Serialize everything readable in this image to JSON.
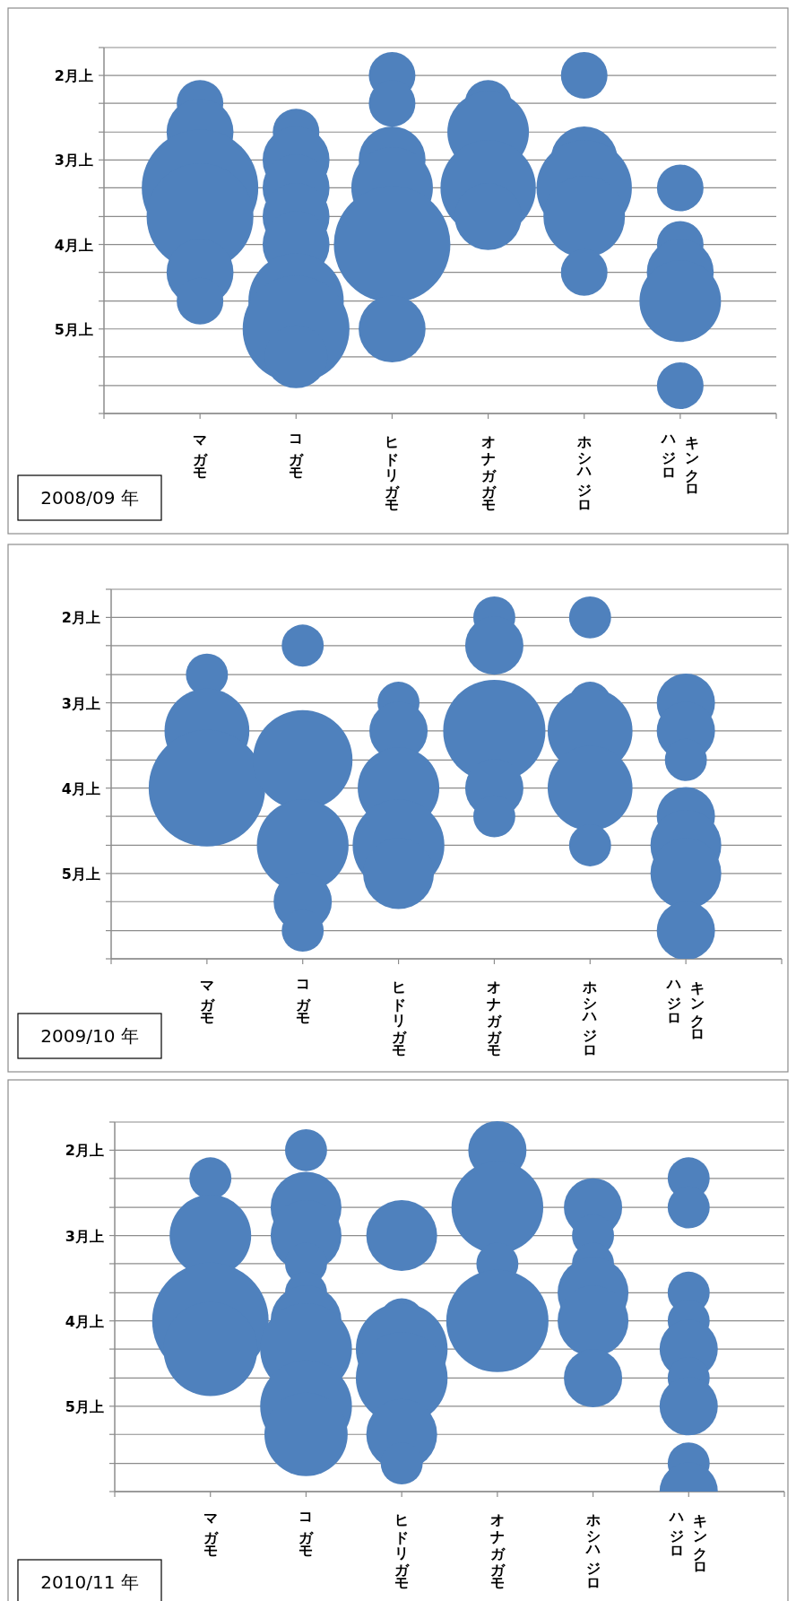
{
  "chart_data": [
    {
      "type": "bubble",
      "categories": [
        "マガモ",
        "コガモ",
        "ヒドリガモ",
        "オナガガモ",
        "ホシハジロ",
        "キンクロハジロ"
      ],
      "series": [
        {
          "color": "#4f81bd",
          "x": [
            "マガモ",
            "マガモ",
            "マガモ",
            "マガモ",
            "マガモ",
            "マガモ"
          ],
          "values": [
            2.33,
            2.67,
            3.33,
            3.67,
            4.33,
            4.67
          ],
          "sizes": [
            0.16,
            0.33,
            1,
            0.84,
            0.33,
            0.16
          ]
        },
        {
          "color": "#4f81bd",
          "x": [
            "コガモ",
            "コガモ",
            "コガモ",
            "コガモ",
            "コガモ",
            "コガモ",
            "コガモ",
            "コガモ"
          ],
          "values": [
            2.67,
            3,
            3.33,
            3.67,
            4,
            4.67,
            5,
            5.33
          ],
          "sizes": [
            0.16,
            0.33,
            0.33,
            0.33,
            0.33,
            0.67,
            0.84,
            0.29
          ]
        },
        {
          "color": "#4f81bd",
          "x": [
            "ヒドリガモ",
            "ヒドリガモ",
            "ヒドリガモ",
            "ヒドリガモ",
            "ヒドリガモ",
            "ヒドリガモ"
          ],
          "values": [
            2,
            2.33,
            3,
            3.33,
            4,
            5
          ],
          "sizes": [
            0.16,
            0.16,
            0.33,
            0.49,
            1,
            0.33
          ]
        },
        {
          "color": "#4f81bd",
          "x": [
            "オナガガモ",
            "オナガガモ",
            "オナガガモ",
            "オナガガモ"
          ],
          "values": [
            2.33,
            2.67,
            3.33,
            3.67
          ],
          "sizes": [
            0.16,
            0.49,
            0.67,
            0.33
          ]
        },
        {
          "color": "#4f81bd",
          "x": [
            "ホシハジロ",
            "ホシハジロ",
            "ホシハジロ",
            "ホシハジロ",
            "ホシハジロ"
          ],
          "values": [
            2,
            3,
            3.33,
            3.67,
            4.33
          ],
          "sizes": [
            0.16,
            0.33,
            0.67,
            0.49,
            0.16
          ]
        },
        {
          "color": "#4f81bd",
          "x": [
            "キンクロハジロ",
            "キンクロハジロ",
            "キンクロハジロ",
            "キンクロハジロ",
            "キンクロハジロ"
          ],
          "values": [
            3.33,
            4,
            4.33,
            4.67,
            5.67
          ],
          "sizes": [
            0.16,
            0.16,
            0.33,
            0.49,
            0.16
          ]
        }
      ],
      "ylim": [
        6,
        1.67
      ],
      "yticks": [
        {
          "value": 1.67,
          "label": null
        },
        {
          "value": 2,
          "label": "2月上"
        },
        {
          "value": 2.33,
          "label": null
        },
        {
          "value": 2.67,
          "label": null
        },
        {
          "value": 3,
          "label": "3月上"
        },
        {
          "value": 3.33,
          "label": null
        },
        {
          "value": 3.67,
          "label": null
        },
        {
          "value": 4,
          "label": "4月上"
        },
        {
          "value": 4.33,
          "label": null
        },
        {
          "value": 4.67,
          "label": null
        },
        {
          "value": 5,
          "label": "5月上"
        },
        {
          "value": 5.33,
          "label": null
        },
        {
          "value": 5.67,
          "label": null
        },
        {
          "value": 6,
          "label": null
        }
      ],
      "grid": "y",
      "annotations": [
        "2008/09 年"
      ]
    },
    {
      "type": "bubble",
      "categories": [
        "マガモ",
        "コガモ",
        "ヒドリガモ",
        "オナガガモ",
        "ホシハジロ",
        "キンクロハジロ"
      ],
      "series": [
        {
          "color": "#4f81bd",
          "x": [
            "マガモ",
            "マガモ",
            "マガモ"
          ],
          "values": [
            2.67,
            3.33,
            4
          ],
          "sizes": [
            0.13,
            0.53,
            1
          ]
        },
        {
          "color": "#4f81bd",
          "x": [
            "コガモ",
            "コガモ",
            "コガモ",
            "コガモ",
            "コガモ"
          ],
          "values": [
            2.33,
            3.67,
            4.67,
            5.33,
            5.67
          ],
          "sizes": [
            0.13,
            0.73,
            0.62,
            0.25,
            0.13
          ]
        },
        {
          "color": "#4f81bd",
          "x": [
            "ヒドリガモ",
            "ヒドリガモ",
            "ヒドリガモ",
            "ヒドリガモ",
            "ヒドリガモ"
          ],
          "values": [
            3,
            3.33,
            4,
            4.67,
            5
          ],
          "sizes": [
            0.13,
            0.25,
            0.49,
            0.62,
            0.37
          ]
        },
        {
          "color": "#4f81bd",
          "x": [
            "オナガガモ",
            "オナガガモ",
            "オナガガモ",
            "オナガガモ",
            "オナガガモ"
          ],
          "values": [
            2,
            2.33,
            3.33,
            4,
            4.33
          ],
          "sizes": [
            0.13,
            0.25,
            0.77,
            0.25,
            0.13
          ]
        },
        {
          "color": "#4f81bd",
          "x": [
            "ホシハジロ",
            "ホシハジロ",
            "ホシハジロ",
            "ホシハジロ",
            "ホシハジロ"
          ],
          "values": [
            2,
            3,
            3.33,
            4,
            4.67
          ],
          "sizes": [
            0.13,
            0.13,
            0.53,
            0.53,
            0.13
          ]
        },
        {
          "color": "#4f81bd",
          "x": [
            "キンクロハジロ",
            "キンクロハジロ",
            "キンクロハジロ",
            "キンクロハジロ",
            "キンクロハジロ",
            "キンクロハジロ",
            "キンクロハジロ"
          ],
          "values": [
            3,
            3.33,
            3.67,
            4.33,
            4.67,
            5,
            5.67
          ],
          "sizes": [
            0.25,
            0.25,
            0.13,
            0.25,
            0.37,
            0.37,
            0.25
          ]
        }
      ],
      "ylim": [
        6,
        1.67
      ],
      "yticks": [
        {
          "value": 1.67,
          "label": null
        },
        {
          "value": 2,
          "label": "2月上"
        },
        {
          "value": 2.33,
          "label": null
        },
        {
          "value": 2.67,
          "label": null
        },
        {
          "value": 3,
          "label": "3月上"
        },
        {
          "value": 3.33,
          "label": null
        },
        {
          "value": 3.67,
          "label": null
        },
        {
          "value": 4,
          "label": "4月上"
        },
        {
          "value": 4.33,
          "label": null
        },
        {
          "value": 4.67,
          "label": null
        },
        {
          "value": 5,
          "label": "5月上"
        },
        {
          "value": 5.33,
          "label": null
        },
        {
          "value": 5.67,
          "label": null
        },
        {
          "value": 6,
          "label": null
        }
      ],
      "grid": "y",
      "annotations": [
        "2009/10 年"
      ]
    },
    {
      "type": "bubble",
      "categories": [
        "マガモ",
        "コガモ",
        "ヒドリガモ",
        "オナガガモ",
        "ホシハジロ",
        "キンクロハジロ"
      ],
      "series": [
        {
          "color": "#4f81bd",
          "x": [
            "マガモ",
            "マガモ",
            "マガモ",
            "マガモ"
          ],
          "values": [
            2.33,
            3,
            4,
            4.33
          ],
          "sizes": [
            0.13,
            0.49,
            1,
            0.65
          ]
        },
        {
          "color": "#4f81bd",
          "x": [
            "コガモ",
            "コガモ",
            "コガモ",
            "コガモ",
            "コガモ",
            "コガモ",
            "コガモ",
            "コガモ",
            "コガモ"
          ],
          "values": [
            2,
            2.67,
            3,
            3.33,
            3.67,
            4,
            4.33,
            5,
            5.33
          ],
          "sizes": [
            0.13,
            0.37,
            0.37,
            0.13,
            0.13,
            0.37,
            0.62,
            0.62,
            0.51
          ]
        },
        {
          "color": "#4f81bd",
          "x": [
            "ヒドリガモ",
            "ヒドリガモ",
            "ヒドリガモ",
            "ヒドリガモ",
            "ヒドリガモ",
            "ヒドリガモ"
          ],
          "values": [
            3,
            4,
            4.33,
            4.67,
            5.33,
            5.67
          ],
          "sizes": [
            0.37,
            0.15,
            0.62,
            0.62,
            0.37,
            0.13
          ]
        },
        {
          "color": "#4f81bd",
          "x": [
            "オナガガモ",
            "オナガガモ",
            "オナガガモ",
            "オナガガモ"
          ],
          "values": [
            2,
            2.67,
            3.33,
            4
          ],
          "sizes": [
            0.25,
            0.62,
            0.13,
            0.77
          ]
        },
        {
          "color": "#4f81bd",
          "x": [
            "ホシハジロ",
            "ホシハジロ",
            "ホシハジロ",
            "ホシハジロ",
            "ホシハジロ",
            "ホシハジロ"
          ],
          "values": [
            2.67,
            3,
            3.33,
            3.67,
            4,
            4.67
          ],
          "sizes": [
            0.25,
            0.13,
            0.13,
            0.37,
            0.37,
            0.25
          ]
        },
        {
          "color": "#4f81bd",
          "x": [
            "キンクロハジロ",
            "キンクロハジロ",
            "キンクロハジロ",
            "キンクロハジロ",
            "キンクロハジロ",
            "キンクロハジロ",
            "キンクロハジロ",
            "キンクロハジロ",
            "キンクロハジロ"
          ],
          "values": [
            2.33,
            2.67,
            3.67,
            4,
            4.33,
            4.67,
            5,
            5.67,
            6
          ],
          "sizes": [
            0.13,
            0.13,
            0.13,
            0.13,
            0.25,
            0.13,
            0.25,
            0.13,
            0.25
          ]
        }
      ],
      "ylim": [
        6,
        1.67
      ],
      "yticks": [
        {
          "value": 1.67,
          "label": null
        },
        {
          "value": 2,
          "label": "2月上"
        },
        {
          "value": 2.33,
          "label": null
        },
        {
          "value": 2.67,
          "label": null
        },
        {
          "value": 3,
          "label": "3月上"
        },
        {
          "value": 3.33,
          "label": null
        },
        {
          "value": 3.67,
          "label": null
        },
        {
          "value": 4,
          "label": "4月上"
        },
        {
          "value": 4.33,
          "label": null
        },
        {
          "value": 4.67,
          "label": null
        },
        {
          "value": 5,
          "label": "5月上"
        },
        {
          "value": 5.33,
          "label": null
        },
        {
          "value": 5.67,
          "label": null
        },
        {
          "value": 6,
          "label": null
        }
      ],
      "grid": "y",
      "annotations": [
        "2010/11 年"
      ]
    }
  ]
}
